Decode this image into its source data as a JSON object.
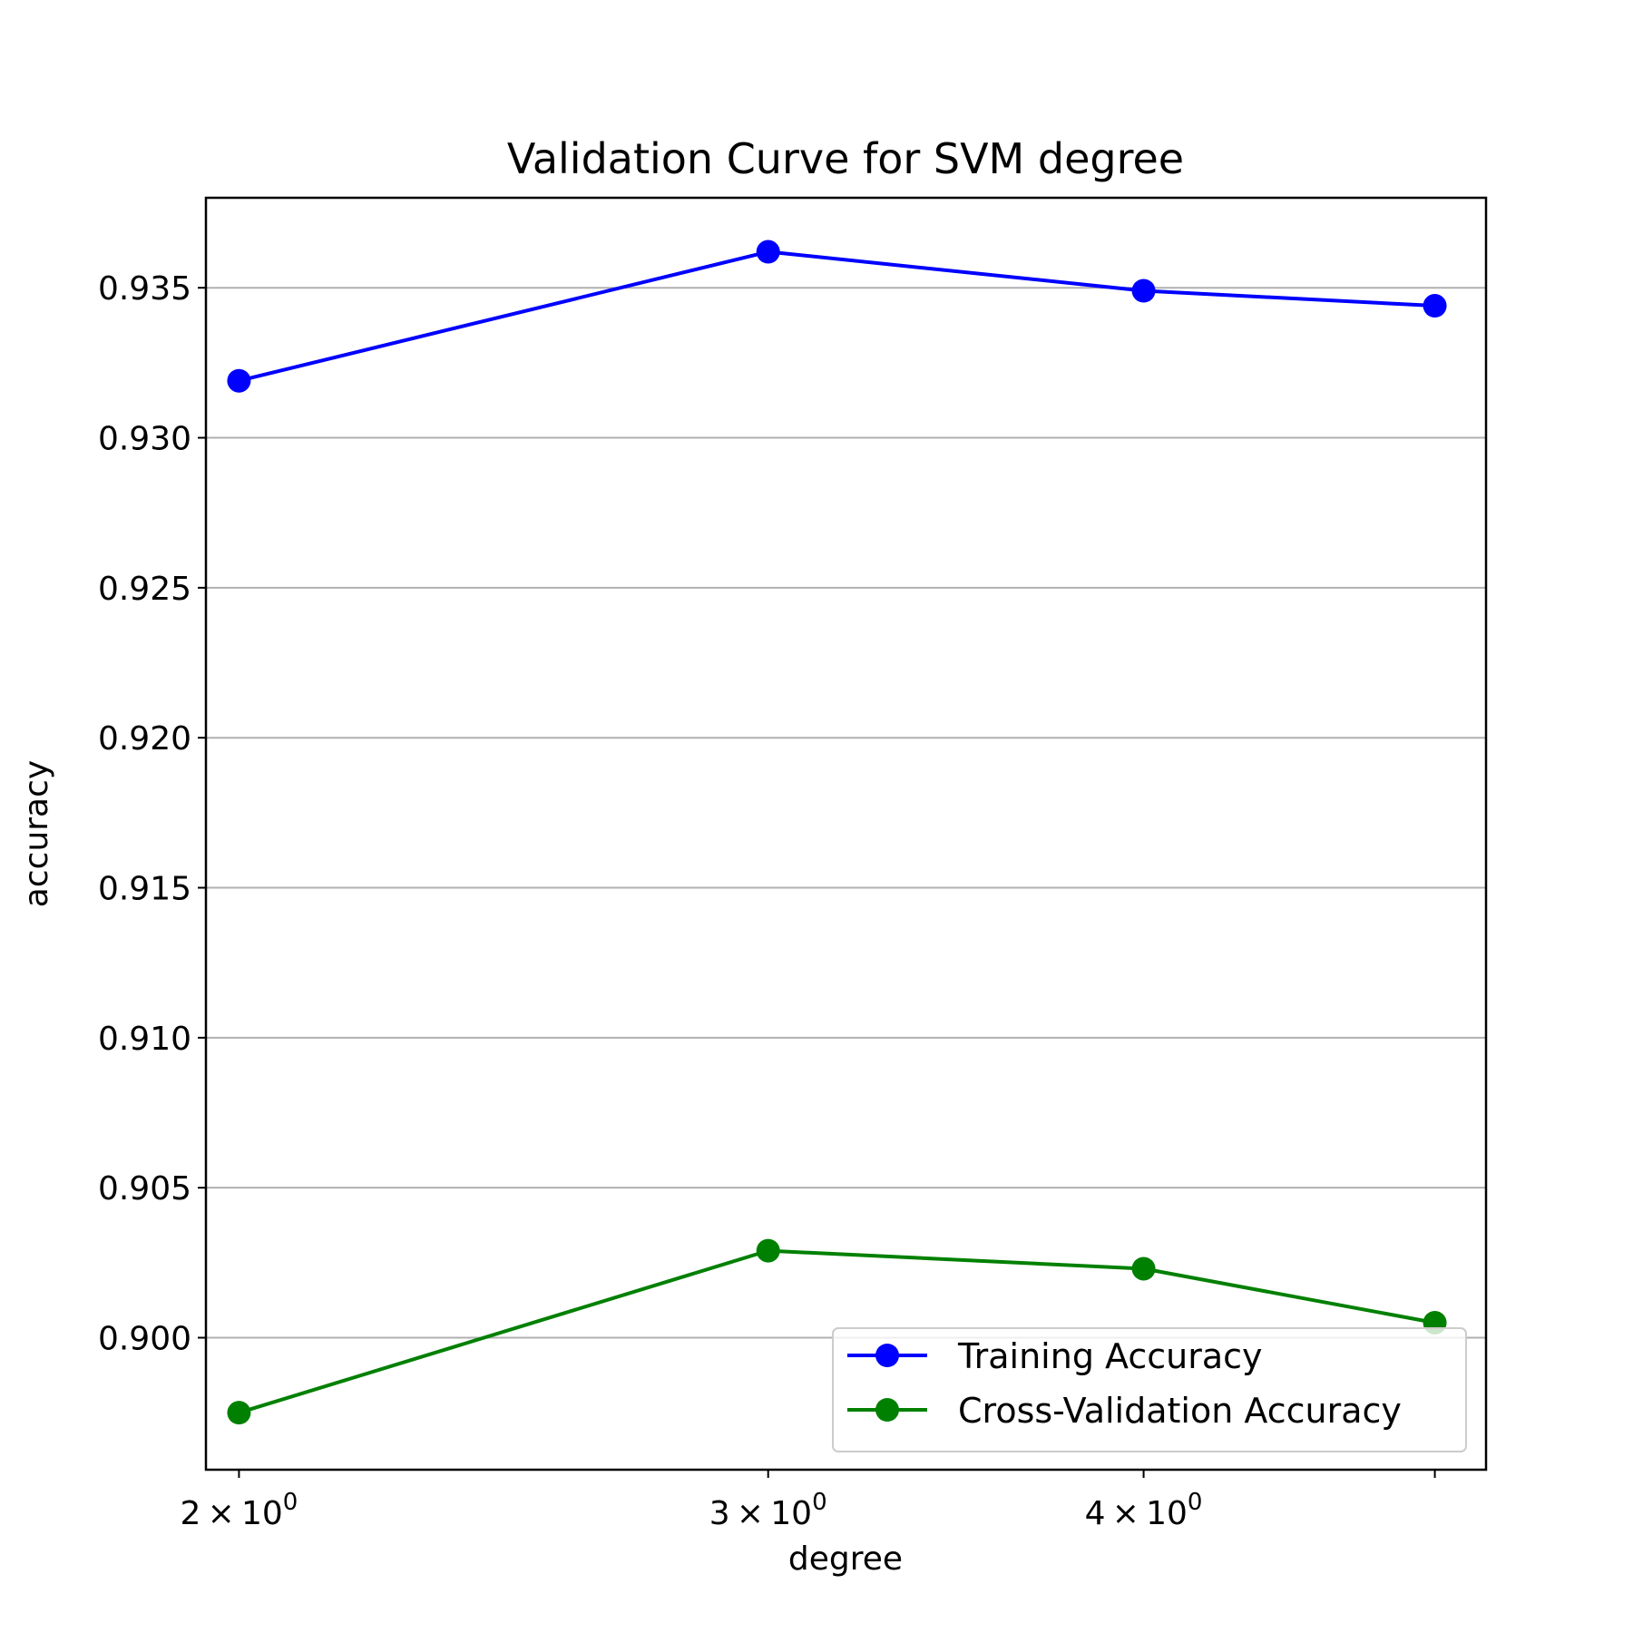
{
  "chart_data": {
    "type": "line",
    "title": "Validation Curve for SVM degree",
    "xlabel": "degree",
    "ylabel": "accuracy",
    "xscale": "log",
    "xlim": [
      1.95,
      5.2
    ],
    "ylim": [
      0.8956,
      0.938
    ],
    "grid": "y-major",
    "legend_position": "lower-right",
    "x_ticks": [
      {
        "value": 2,
        "mantissa": "2",
        "base": "10",
        "exponent": "0"
      },
      {
        "value": 3,
        "mantissa": "3",
        "base": "10",
        "exponent": "0"
      },
      {
        "value": 4,
        "mantissa": "4",
        "base": "10",
        "exponent": "0"
      },
      {
        "value": 5,
        "mantissa": "",
        "base": "",
        "exponent": ""
      }
    ],
    "y_ticks": [
      {
        "value": 0.9,
        "label": "0.900"
      },
      {
        "value": 0.905,
        "label": "0.905"
      },
      {
        "value": 0.91,
        "label": "0.910"
      },
      {
        "value": 0.915,
        "label": "0.915"
      },
      {
        "value": 0.92,
        "label": "0.920"
      },
      {
        "value": 0.925,
        "label": "0.925"
      },
      {
        "value": 0.93,
        "label": "0.930"
      },
      {
        "value": 0.935,
        "label": "0.935"
      }
    ],
    "x": [
      2,
      3,
      4,
      5
    ],
    "series": [
      {
        "name": "Training Accuracy",
        "color": "#0000ff",
        "values": [
          0.9319,
          0.9362,
          0.9349,
          0.9344
        ]
      },
      {
        "name": "Cross-Validation Accuracy",
        "color": "#008000",
        "values": [
          0.8975,
          0.9029,
          0.9023,
          0.9005
        ]
      }
    ]
  }
}
